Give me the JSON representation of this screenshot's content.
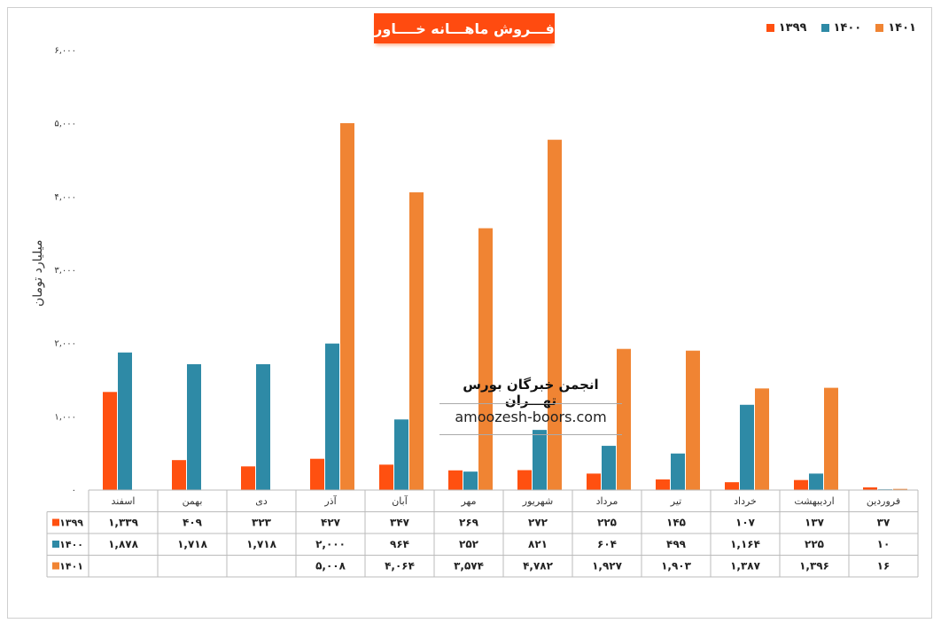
{
  "colors": {
    "s1399": "#ff5010",
    "s1400": "#2e8aa6",
    "s1401": "#f08433",
    "title_bg": "#ff4b10"
  },
  "title": "فـــروش ماهـــانه خــــاور",
  "y_axis_title": "میلیارد تومان",
  "watermark": {
    "line1": "انجمن خبرگان بورس تهـــران",
    "line2": "amoozesh-boors.com"
  },
  "chart_data": {
    "type": "bar",
    "title": "فـــروش ماهـــانه خــــاور",
    "ylabel": "میلیارد تومان",
    "ylim": [
      0,
      6000
    ],
    "y_ticks": [
      0,
      1000,
      2000,
      3000,
      4000,
      5000,
      6000
    ],
    "y_tick_labels": [
      "۰",
      "۱,۰۰۰",
      "۲,۰۰۰",
      "۳,۰۰۰",
      "۴,۰۰۰",
      "۵,۰۰۰",
      "۶,۰۰۰"
    ],
    "legend_position": "top-right",
    "categories": [
      "فروردین",
      "اردیبهشت",
      "خرداد",
      "تیر",
      "مرداد",
      "شهریور",
      "مهر",
      "آبان",
      "آذر",
      "دی",
      "بهمن",
      "اسفند"
    ],
    "series": [
      {
        "name": "۱۳۹۹",
        "color": "#ff5010",
        "values": [
          37,
          137,
          107,
          145,
          225,
          272,
          269,
          347,
          427,
          323,
          409,
          1339
        ],
        "labels": [
          "۳۷",
          "۱۳۷",
          "۱۰۷",
          "۱۴۵",
          "۲۲۵",
          "۲۷۲",
          "۲۶۹",
          "۳۴۷",
          "۴۲۷",
          "۳۲۳",
          "۴۰۹",
          "۱,۳۳۹"
        ]
      },
      {
        "name": "۱۴۰۰",
        "color": "#2e8aa6",
        "values": [
          10,
          225,
          1164,
          499,
          604,
          821,
          252,
          964,
          2000,
          1718,
          1718,
          1878
        ],
        "labels": [
          "۱۰",
          "۲۲۵",
          "۱,۱۶۴",
          "۴۹۹",
          "۶۰۴",
          "۸۲۱",
          "۲۵۲",
          "۹۶۴",
          "۲,۰۰۰",
          "۱,۷۱۸",
          "۱,۷۱۸",
          "۱,۸۷۸"
        ]
      },
      {
        "name": "۱۴۰۱",
        "color": "#f08433",
        "values": [
          16,
          1396,
          1387,
          1903,
          1927,
          4782,
          3574,
          4064,
          5008,
          null,
          null,
          null
        ],
        "labels": [
          "۱۶",
          "۱,۳۹۶",
          "۱,۳۸۷",
          "۱,۹۰۳",
          "۱,۹۲۷",
          "۴,۷۸۲",
          "۳,۵۷۴",
          "۴,۰۶۴",
          "۵,۰۰۸",
          "",
          "",
          ""
        ]
      }
    ]
  }
}
